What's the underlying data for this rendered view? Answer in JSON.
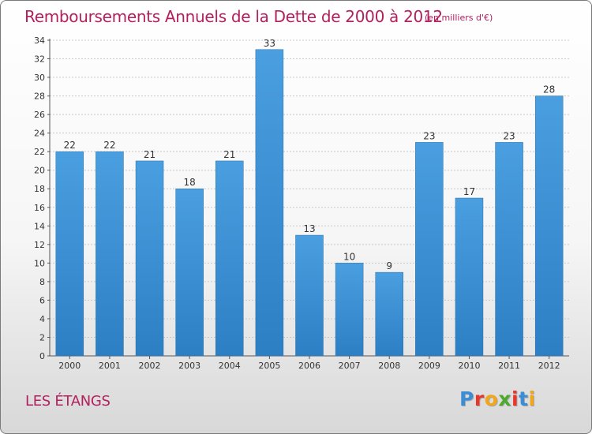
{
  "header": {
    "title": "Remboursements Annuels de la Dette de 2000 à 2012",
    "unit_note": "(en milliers d'€)"
  },
  "footer": {
    "commune": "LES ÉTANGS",
    "logo_text": "Proxiti",
    "logo_colors": [
      "#3b8ed6",
      "#e8362a",
      "#f2a71b",
      "#4daa2e",
      "#e8362a",
      "#3b8ed6",
      "#f2a71b"
    ]
  },
  "colors": {
    "bar": "#4a9fe0",
    "bar_dark": "#2d7fc4",
    "title": "#b3205e",
    "grid": "#c8c8c8"
  },
  "chart_data": {
    "type": "bar",
    "title": "Remboursements Annuels de la Dette de 2000 à 2012",
    "subtitle": "(en milliers d'€)",
    "categories": [
      "2000",
      "2001",
      "2002",
      "2003",
      "2004",
      "2005",
      "2006",
      "2007",
      "2008",
      "2009",
      "2010",
      "2011",
      "2012"
    ],
    "values": [
      22,
      22,
      21,
      18,
      21,
      33,
      13,
      10,
      9,
      23,
      17,
      23,
      28
    ],
    "ylim": [
      0,
      34
    ],
    "yticks": [
      0,
      2,
      4,
      6,
      8,
      10,
      12,
      14,
      16,
      18,
      20,
      22,
      24,
      26,
      28,
      30,
      32,
      34
    ],
    "grid": true,
    "data_labels": true
  }
}
